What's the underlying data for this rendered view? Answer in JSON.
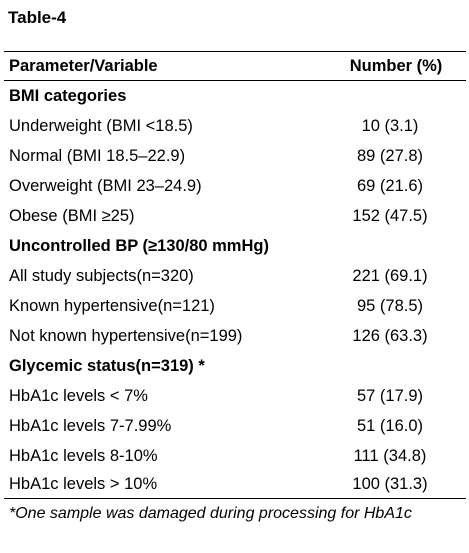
{
  "table_title": "Table-4",
  "header": {
    "parameter": "Parameter/Variable",
    "number": "Number (%)"
  },
  "rows": [
    {
      "type": "section",
      "label": "BMI categories",
      "value": ""
    },
    {
      "type": "data",
      "label": "Underweight (BMI <18.5)",
      "value": "10 (3.1)"
    },
    {
      "type": "data",
      "label": "Normal (BMI 18.5–22.9)",
      "value": "89 (27.8)"
    },
    {
      "type": "data",
      "label": "Overweight (BMI 23–24.9)",
      "value": "69 (21.6)"
    },
    {
      "type": "data",
      "label": "Obese (BMI ≥25)",
      "value": "152 (47.5)"
    },
    {
      "type": "section",
      "label": "Uncontrolled BP (≥130/80 mmHg)",
      "value": ""
    },
    {
      "type": "data",
      "label": "All study subjects(n=320)",
      "value": "221 (69.1)"
    },
    {
      "type": "data",
      "label": "Known hypertensive(n=121)",
      "value": "95 (78.5)"
    },
    {
      "type": "data",
      "label": "Not known hypertensive(n=199)",
      "value": "126 (63.3)"
    },
    {
      "type": "section",
      "label": "Glycemic status(n=319) *",
      "value": ""
    },
    {
      "type": "data",
      "label": "HbA1c levels < 7%",
      "value": "57 (17.9)"
    },
    {
      "type": "data",
      "label": "HbA1c levels 7-7.99%",
      "value": "51 (16.0)"
    },
    {
      "type": "data",
      "label": "HbA1c levels 8-10%",
      "value": "111 (34.8)"
    },
    {
      "type": "data",
      "label": "HbA1c levels > 10%",
      "value": "100 (31.3)"
    }
  ],
  "footnote": "*One sample was damaged during processing for HbA1c"
}
